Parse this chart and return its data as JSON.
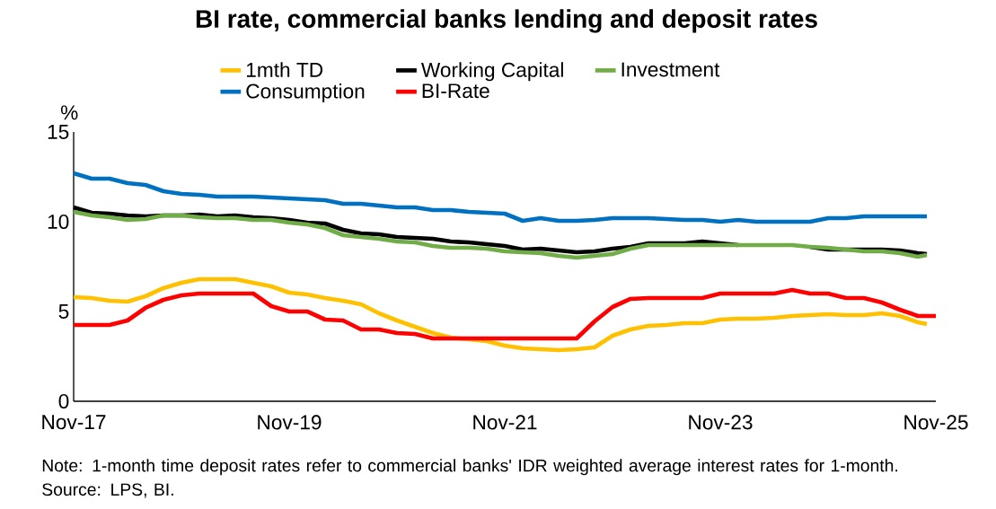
{
  "chart_data": {
    "type": "line",
    "title": "BI rate, commercial banks lending and deposit rates",
    "ylabel": "%",
    "annotations": [
      "Note: 1-month time deposit rates refer to commercial banks' IDR weighted average interest rates for 1-month. Source: LPS, BI."
    ],
    "x": [
      "2017-11",
      "2018-01",
      "2018-03",
      "2018-05",
      "2018-07",
      "2018-09",
      "2018-11",
      "2019-01",
      "2019-03",
      "2019-05",
      "2019-07",
      "2019-09",
      "2019-11",
      "2020-01",
      "2020-03",
      "2020-05",
      "2020-07",
      "2020-09",
      "2020-11",
      "2021-01",
      "2021-03",
      "2021-05",
      "2021-07",
      "2021-09",
      "2021-11",
      "2022-01",
      "2022-03",
      "2022-05",
      "2022-07",
      "2022-09",
      "2022-11",
      "2023-01",
      "2023-03",
      "2023-05",
      "2023-07",
      "2023-09",
      "2023-11",
      "2024-01",
      "2024-03",
      "2024-05",
      "2024-07",
      "2024-09",
      "2024-11",
      "2025-01",
      "2025-03",
      "2025-05",
      "2025-07",
      "2025-09",
      "2025-10",
      "2025-11"
    ],
    "series": [
      {
        "name": "1mth TD",
        "color": "#ffc000",
        "values": [
          5.8,
          5.75,
          5.6,
          5.55,
          5.85,
          6.3,
          6.6,
          6.8,
          6.8,
          6.8,
          6.6,
          6.4,
          6.05,
          5.95,
          5.75,
          5.6,
          5.4,
          4.9,
          4.5,
          4.15,
          3.8,
          3.55,
          3.45,
          3.35,
          3.1,
          2.95,
          2.9,
          2.85,
          2.9,
          3.0,
          3.65,
          4.0,
          4.2,
          4.25,
          4.35,
          4.35,
          4.55,
          4.6,
          4.6,
          4.65,
          4.75,
          4.8,
          4.85,
          4.8,
          4.8,
          4.9,
          4.75,
          4.4,
          4.3,
          null
        ]
      },
      {
        "name": "Working Capital",
        "color": "#000000",
        "values": [
          10.8,
          10.5,
          10.45,
          10.35,
          10.3,
          10.35,
          10.35,
          10.4,
          10.3,
          10.35,
          10.25,
          10.2,
          10.1,
          9.95,
          9.9,
          9.55,
          9.35,
          9.3,
          9.15,
          9.1,
          9.05,
          8.9,
          8.85,
          8.75,
          8.65,
          8.45,
          8.5,
          8.4,
          8.3,
          8.35,
          8.5,
          8.6,
          8.8,
          8.8,
          8.8,
          8.9,
          8.8,
          8.7,
          null,
          null,
          null,
          8.6,
          8.45,
          8.45,
          8.45,
          8.45,
          8.4,
          8.25,
          8.2,
          null
        ]
      },
      {
        "name": "Investment",
        "color": "#70ad47",
        "values": [
          10.55,
          10.35,
          10.25,
          10.1,
          10.15,
          10.35,
          10.35,
          10.25,
          10.2,
          10.2,
          10.1,
          10.1,
          9.95,
          9.85,
          9.65,
          9.25,
          9.15,
          9.05,
          8.9,
          8.85,
          8.65,
          8.55,
          8.55,
          8.5,
          8.35,
          8.3,
          8.25,
          8.1,
          8.0,
          8.1,
          8.2,
          8.5,
          8.7,
          8.7,
          8.7,
          8.7,
          8.7,
          8.7,
          8.7,
          8.7,
          8.7,
          8.6,
          8.55,
          8.45,
          8.35,
          8.35,
          8.25,
          8.05,
          8.15,
          null
        ]
      },
      {
        "name": "Consumption",
        "color": "#0070c0",
        "values": [
          12.7,
          12.4,
          12.4,
          12.15,
          12.05,
          11.7,
          11.55,
          11.5,
          11.4,
          11.4,
          11.4,
          11.35,
          11.3,
          11.25,
          11.2,
          11.0,
          11.0,
          10.9,
          10.8,
          10.8,
          10.65,
          10.65,
          10.55,
          10.5,
          10.45,
          10.05,
          10.2,
          10.05,
          10.05,
          10.1,
          10.2,
          10.2,
          10.2,
          10.15,
          10.1,
          10.1,
          10.0,
          10.1,
          10.0,
          10.0,
          10.0,
          10.0,
          10.2,
          10.2,
          10.3,
          10.3,
          10.3,
          10.3,
          10.3,
          null
        ]
      },
      {
        "name": "BI-Rate",
        "color": "#ff0000",
        "values": [
          4.25,
          4.25,
          4.25,
          4.5,
          5.2,
          5.65,
          5.9,
          6.0,
          6.0,
          6.0,
          6.0,
          5.3,
          5.0,
          5.0,
          4.55,
          4.5,
          4.0,
          4.0,
          3.8,
          3.75,
          3.5,
          3.5,
          3.5,
          3.5,
          3.5,
          3.5,
          3.5,
          3.5,
          3.5,
          4.45,
          5.25,
          5.7,
          5.75,
          5.75,
          5.75,
          5.75,
          6.0,
          6.0,
          6.0,
          6.0,
          6.2,
          6.0,
          6.0,
          5.75,
          5.75,
          5.5,
          5.1,
          4.75,
          4.75,
          4.75
        ]
      }
    ],
    "xlim": [
      "2017-11",
      "2025-11"
    ],
    "xticks": [
      {
        "value": "2017-11",
        "label": "Nov-17"
      },
      {
        "value": "2019-11",
        "label": "Nov-19"
      },
      {
        "value": "2021-11",
        "label": "Nov-21"
      },
      {
        "value": "2023-11",
        "label": "Nov-23"
      },
      {
        "value": "2025-11",
        "label": "Nov-25"
      }
    ],
    "ylim": [
      0,
      15
    ],
    "yticks": [
      0,
      5,
      10,
      15
    ],
    "grid": false,
    "legend": "top",
    "marker": "none",
    "line_style": "solid"
  }
}
